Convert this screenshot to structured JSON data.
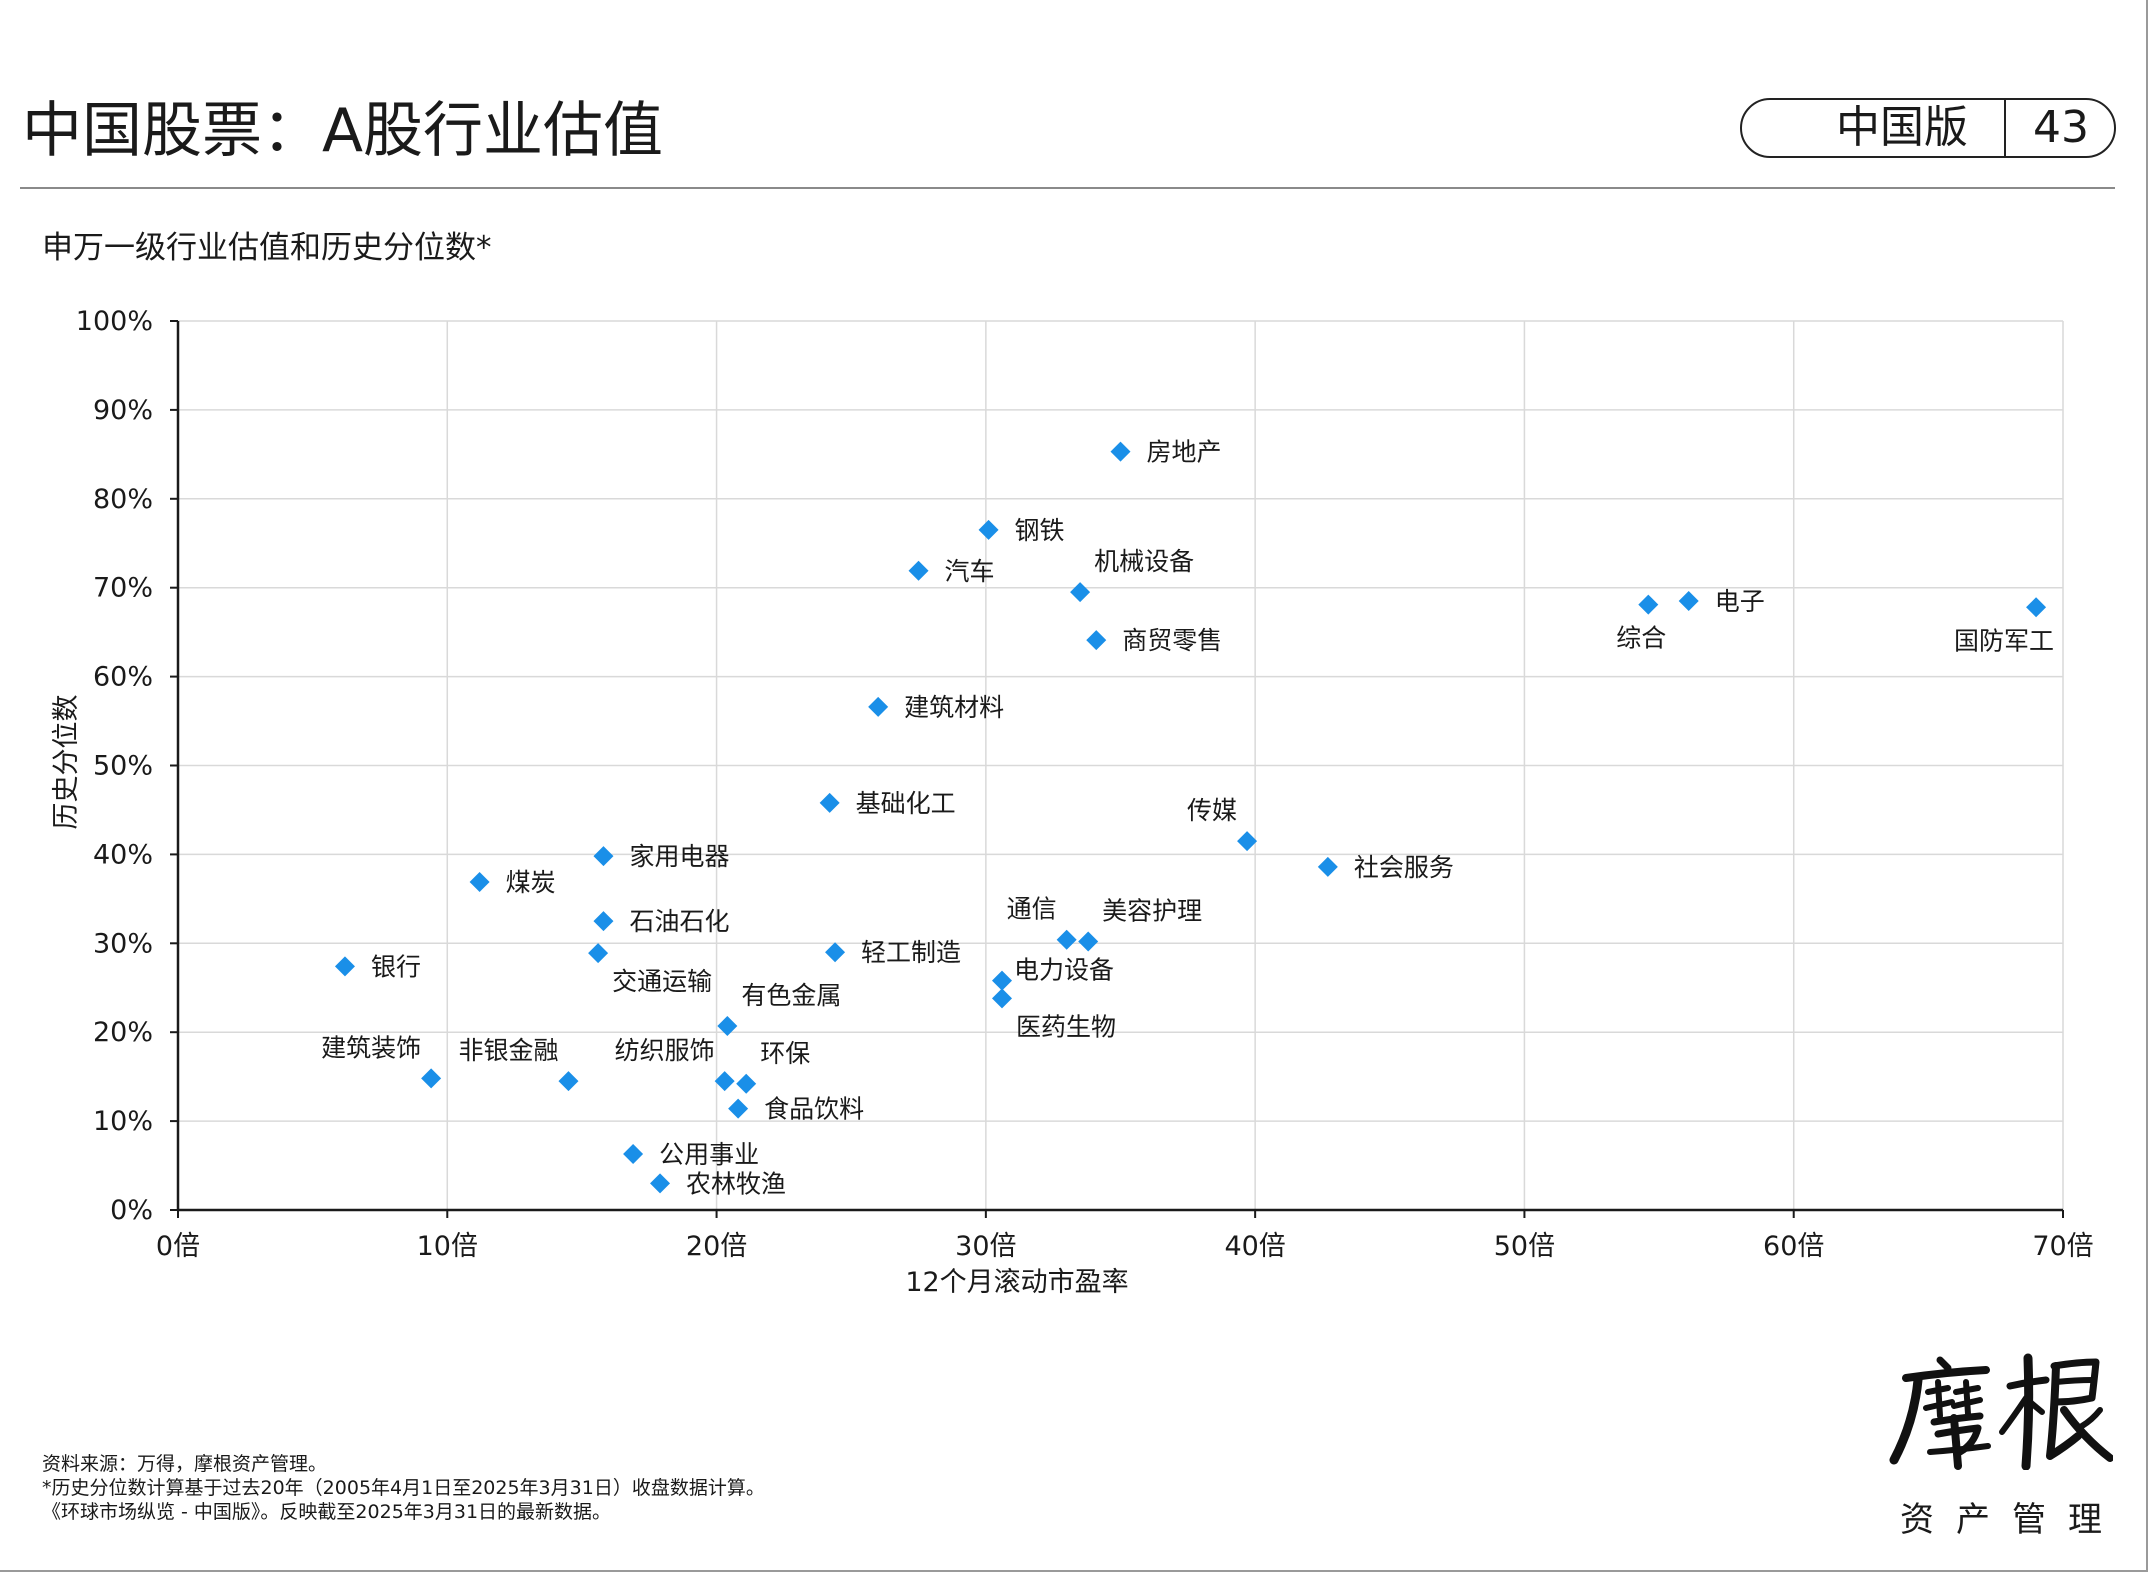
{
  "header": {
    "title": "中国股票：A股行业估值",
    "edition": "中国版",
    "page_number": "43"
  },
  "chart_title": "申万一级行业估值和历史分位数*",
  "chart_data": {
    "type": "scatter",
    "xlabel": "12个月滚动市盈率",
    "ylabel": "历史分位数",
    "xlim": [
      0,
      70
    ],
    "ylim": [
      0,
      100
    ],
    "x_tick_labels": [
      "0倍",
      "10倍",
      "20倍",
      "30倍",
      "40倍",
      "50倍",
      "60倍",
      "70倍"
    ],
    "y_tick_labels": [
      "0%",
      "10%",
      "20%",
      "30%",
      "40%",
      "50%",
      "60%",
      "70%",
      "80%",
      "90%",
      "100%"
    ],
    "grid": true,
    "marker": "diamond",
    "marker_color": "#1a8fe8",
    "points": [
      {
        "label": "房地产",
        "x": 35.0,
        "y": 85.3,
        "label_pos": "right"
      },
      {
        "label": "钢铁",
        "x": 30.1,
        "y": 76.5,
        "label_pos": "right"
      },
      {
        "label": "汽车",
        "x": 27.5,
        "y": 71.9,
        "label_pos": "right"
      },
      {
        "label": "机械设备",
        "x": 33.5,
        "y": 69.5,
        "label_pos": "above-right"
      },
      {
        "label": "商贸零售",
        "x": 34.1,
        "y": 64.1,
        "label_pos": "right"
      },
      {
        "label": "建筑材料",
        "x": 26.0,
        "y": 56.6,
        "label_pos": "right"
      },
      {
        "label": "综合",
        "x": 54.6,
        "y": 68.1,
        "label_pos": "below-left"
      },
      {
        "label": "电子",
        "x": 56.1,
        "y": 68.5,
        "label_pos": "right"
      },
      {
        "label": "国防军工",
        "x": 69.0,
        "y": 67.8,
        "label_pos": "below-left"
      },
      {
        "label": "基础化工",
        "x": 24.2,
        "y": 45.8,
        "label_pos": "right"
      },
      {
        "label": "传媒",
        "x": 39.7,
        "y": 41.5,
        "label_pos": "above-left"
      },
      {
        "label": "社会服务",
        "x": 42.7,
        "y": 38.6,
        "label_pos": "right"
      },
      {
        "label": "煤炭",
        "x": 11.2,
        "y": 36.9,
        "label_pos": "right"
      },
      {
        "label": "家用电器",
        "x": 15.8,
        "y": 39.8,
        "label_pos": "right"
      },
      {
        "label": "石油石化",
        "x": 15.8,
        "y": 32.5,
        "label_pos": "right"
      },
      {
        "label": "交通运输",
        "x": 15.6,
        "y": 28.9,
        "label_pos": "below-right"
      },
      {
        "label": "银行",
        "x": 6.2,
        "y": 27.4,
        "label_pos": "right"
      },
      {
        "label": "轻工制造",
        "x": 24.4,
        "y": 29.0,
        "label_pos": "right"
      },
      {
        "label": "通信",
        "x": 33.0,
        "y": 30.4,
        "label_pos": "above-left"
      },
      {
        "label": "美容护理",
        "x": 33.8,
        "y": 30.2,
        "label_pos": "above-right"
      },
      {
        "label": "电力设备",
        "x": 30.6,
        "y": 25.8,
        "label_pos": "right-tight"
      },
      {
        "label": "医药生物",
        "x": 30.6,
        "y": 23.8,
        "label_pos": "below-right"
      },
      {
        "label": "有色金属",
        "x": 20.4,
        "y": 20.7,
        "label_pos": "above-right"
      },
      {
        "label": "建筑装饰",
        "x": 9.4,
        "y": 14.8,
        "label_pos": "above-left"
      },
      {
        "label": "非银金融",
        "x": 14.5,
        "y": 14.5,
        "label_pos": "above-left"
      },
      {
        "label": "纺织服饰",
        "x": 20.3,
        "y": 14.5,
        "label_pos": "above-left"
      },
      {
        "label": "环保",
        "x": 21.1,
        "y": 14.2,
        "label_pos": "above-right"
      },
      {
        "label": "食品饮料",
        "x": 20.8,
        "y": 11.4,
        "label_pos": "right"
      },
      {
        "label": "公用事业",
        "x": 16.9,
        "y": 6.3,
        "label_pos": "right"
      },
      {
        "label": "农林牧渔",
        "x": 17.9,
        "y": 3.0,
        "label_pos": "right"
      }
    ]
  },
  "footnotes": [
    "资料来源：万得，摩根资产管理。",
    "*历史分位数计算基于过去20年（2005年4月1日至2025年3月31日）收盘数据计算。",
    "《环球市场纵览 - 中国版》。反映截至2025年3月31日的最新数据。"
  ],
  "logo": {
    "brand": "摩根",
    "subtitle": "资产管理"
  }
}
